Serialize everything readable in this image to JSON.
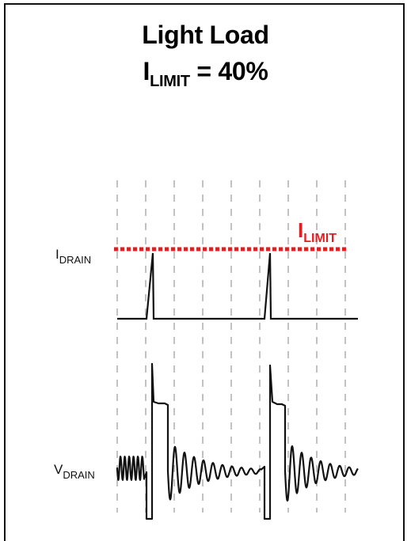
{
  "title": {
    "line1": "Light Load",
    "line2_main": "I",
    "line2_sub": "LIMIT",
    "line2_rest": " = 40%"
  },
  "labels": {
    "idrain_main": "I",
    "idrain_sub": "DRAIN",
    "vdrain_main": "V",
    "vdrain_sub": "DRAIN",
    "ilimit_main": "I",
    "ilimit_sub": "LIMIT"
  },
  "colors": {
    "limit": "#e02020",
    "trace": "#111111",
    "grid": "#9a9a9a"
  }
}
